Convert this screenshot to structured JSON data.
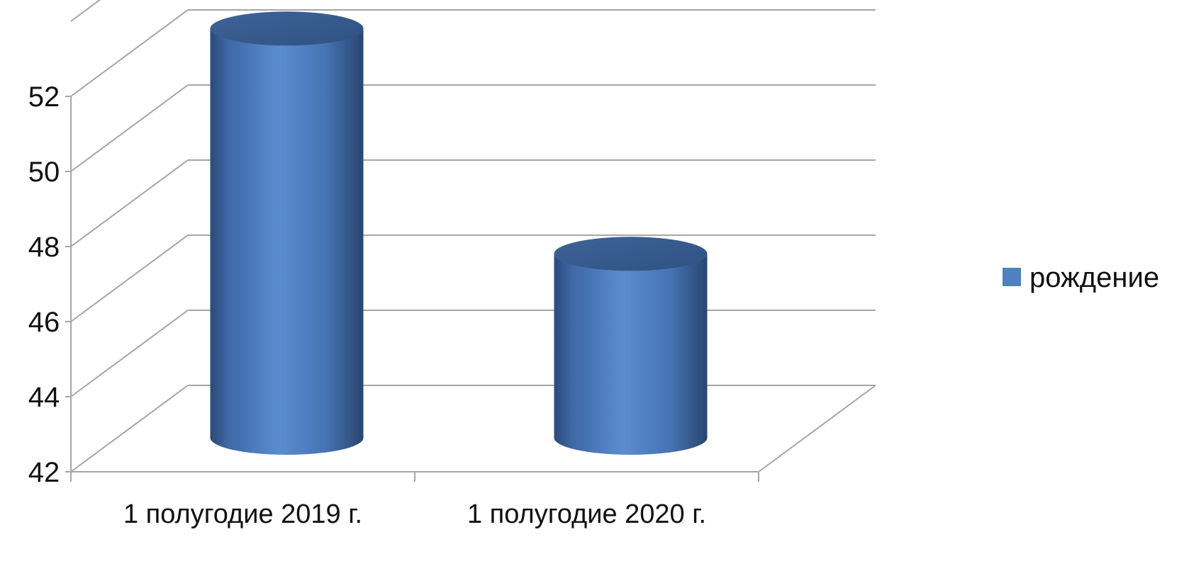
{
  "chart_data": {
    "type": "bar",
    "style": "3d-cylinder",
    "categories": [
      "1 полугодие 2019 г.",
      "1 полугодие 2020 г."
    ],
    "series": [
      {
        "name": "рождение",
        "values": [
          52.9,
          46.9
        ],
        "color": "#4f81bd"
      }
    ],
    "title": "",
    "xlabel": "",
    "ylabel": "",
    "ylim": [
      42,
      52
    ],
    "yticks": [
      42,
      44,
      46,
      48,
      50,
      52
    ],
    "grid": true,
    "legend_position": "right"
  }
}
